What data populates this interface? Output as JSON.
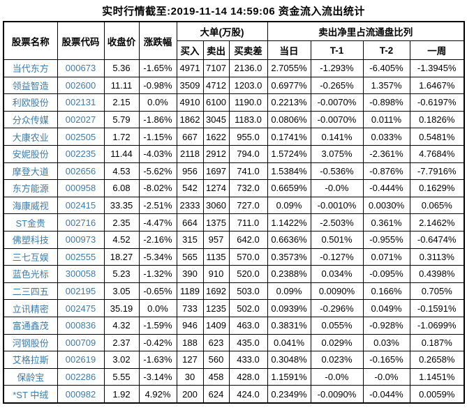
{
  "title": "实时行情截至:2019-11-14 14:59:06 资金流入流出统计",
  "colors": {
    "stock_link_blue": "#3f7ba6",
    "table_text": "#000000",
    "border": "#000000",
    "background": "#ffffff"
  },
  "table": {
    "headers": {
      "stock_name": "股票名称",
      "stock_code": "股票代码",
      "close_price": "收盘价",
      "change_pct": "涨跌幅",
      "big_order_group": "大单(万股)",
      "buy": "买入",
      "sell": "卖出",
      "buy_sell_diff": "买卖差",
      "net_sell_ratio_group": "卖出净里占流通盘比列",
      "today": "当日",
      "t_minus_1": "T-1",
      "t_minus_2": "T-2",
      "week": "一周"
    },
    "col_names": [
      "stock-name",
      "stock-code",
      "close-price",
      "change-pct",
      "buy-volume",
      "sell-volume",
      "buy-sell-diff",
      "net-ratio-today",
      "net-ratio-t1",
      "net-ratio-t2",
      "net-ratio-week"
    ],
    "rows": [
      [
        "当代东方",
        "000673",
        "5.36",
        "-1.65%",
        "4971",
        "7107",
        "2136.0",
        "2.7055%",
        "-1.293%",
        "-6.405%",
        "-1.3945%"
      ],
      [
        "领益智造",
        "002600",
        "11.11",
        "-0.98%",
        "3509",
        "4712",
        "1203.0",
        "0.6977%",
        "-0.265%",
        "1.357%",
        "1.6467%"
      ],
      [
        "利欧股份",
        "002131",
        "2.15",
        "0.0%",
        "4910",
        "6100",
        "1190.0",
        "0.2213%",
        "-0.0070%",
        "-0.898%",
        "-0.6197%"
      ],
      [
        "分众传媒",
        "002027",
        "5.79",
        "-1.86%",
        "1862",
        "3045",
        "1183.0",
        "0.0806%",
        "-0.0070%",
        "0.011%",
        "0.1826%"
      ],
      [
        "大康农业",
        "002505",
        "1.72",
        "-1.15%",
        "667",
        "1622",
        "955.0",
        "0.1741%",
        "0.141%",
        "0.033%",
        "0.5481%"
      ],
      [
        "安妮股份",
        "002235",
        "11.44",
        "-4.03%",
        "2118",
        "2912",
        "794.0",
        "1.5724%",
        "3.075%",
        "-2.361%",
        "4.7684%"
      ],
      [
        "摩登大道",
        "002656",
        "4.53",
        "-5.62%",
        "956",
        "1697",
        "741.0",
        "1.5384%",
        "-0.536%",
        "-0.876%",
        "-7.7916%"
      ],
      [
        "东方能源",
        "000958",
        "6.08",
        "-8.02%",
        "542",
        "1274",
        "732.0",
        "0.6659%",
        "-0.0%",
        "-0.444%",
        "0.1629%"
      ],
      [
        "海康威视",
        "002415",
        "33.35",
        "-2.51%",
        "2333",
        "3060",
        "727.0",
        "0.09%",
        "-0.0010%",
        "0.0030%",
        "0.065%"
      ],
      [
        "ST金贵",
        "002716",
        "2.35",
        "-4.47%",
        "664",
        "1375",
        "711.0",
        "1.1422%",
        "-2.503%",
        "0.361%",
        "2.1462%"
      ],
      [
        "佛塑科技",
        "000973",
        "4.52",
        "-2.16%",
        "315",
        "957",
        "642.0",
        "0.6636%",
        "0.501%",
        "-0.955%",
        "-0.6474%"
      ],
      [
        "三七互娱",
        "002555",
        "18.27",
        "-5.34%",
        "565",
        "1135",
        "570.0",
        "0.3573%",
        "-0.127%",
        "0.071%",
        "0.3113%"
      ],
      [
        "蓝色光标",
        "300058",
        "5.23",
        "-1.32%",
        "390",
        "910",
        "520.0",
        "0.2388%",
        "0.034%",
        "-0.095%",
        "0.4398%"
      ],
      [
        "二三四五",
        "002195",
        "3.05",
        "-0.65%",
        "1189",
        "1692",
        "503.0",
        "0.09%",
        "0.0090%",
        "0.166%",
        "0.705%"
      ],
      [
        "立讯精密",
        "002475",
        "35.19",
        "0.0%",
        "733",
        "1235",
        "502.0",
        "0.0939%",
        "-0.296%",
        "0.049%",
        "-0.1591%"
      ],
      [
        "富通鑫茂",
        "000836",
        "4.32",
        "-1.59%",
        "946",
        "1409",
        "463.0",
        "0.3831%",
        "0.055%",
        "-0.928%",
        "-1.0699%"
      ],
      [
        "河钢股份",
        "000709",
        "2.37",
        "-0.42%",
        "188",
        "623",
        "435.0",
        "0.041%",
        "0.029%",
        "0.03%",
        "0.187%"
      ],
      [
        "艾格拉斯",
        "002619",
        "3.02",
        "-1.63%",
        "127",
        "560",
        "433.0",
        "0.3048%",
        "0.023%",
        "-0.165%",
        "0.2658%"
      ],
      [
        "保龄宝",
        "002286",
        "5.55",
        "-3.14%",
        "30",
        "458",
        "428.0",
        "1.1591%",
        "-0.0%",
        "-0.0%",
        "1.1451%"
      ],
      [
        "*ST 中绒",
        "000982",
        "1.92",
        "4.92%",
        "200",
        "624",
        "424.0",
        "0.2349%",
        "-0.0090%",
        "-0.044%",
        "0.0059%"
      ]
    ]
  }
}
